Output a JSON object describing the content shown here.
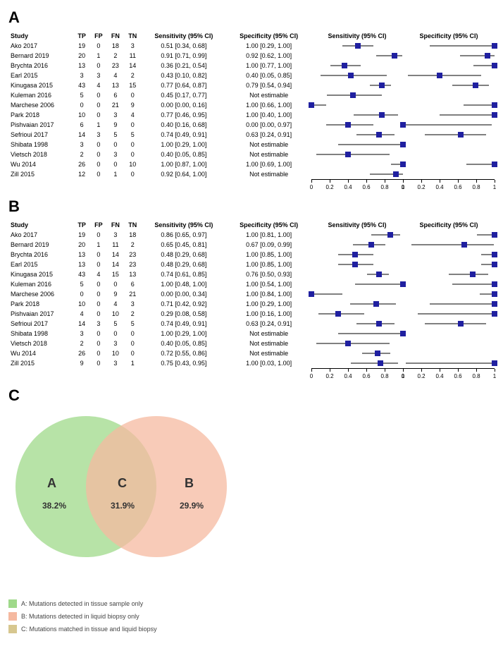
{
  "panelA": {
    "label": "A",
    "columns": [
      "Study",
      "TP",
      "FP",
      "FN",
      "TN",
      "Sensitivity (95% CI)",
      "Specificity (95% CI)",
      "Sensitivity (95% CI)",
      "Specificity (95% CI)"
    ],
    "axis_ticks": [
      0,
      0.2,
      0.4,
      0.6,
      0.8,
      1
    ],
    "marker_color": "#2020a0",
    "rows": [
      {
        "study": "Ako 2017",
        "tp": 19,
        "fp": 0,
        "fn": 18,
        "tn": 3,
        "sens_txt": "0.51 [0.34, 0.68]",
        "spec_txt": "1.00 [0.29, 1.00]",
        "sens": {
          "lo": 0.34,
          "pt": 0.51,
          "hi": 0.68
        },
        "spec": {
          "lo": 0.29,
          "pt": 1.0,
          "hi": 1.0
        }
      },
      {
        "study": "Bernard 2019",
        "tp": 20,
        "fp": 1,
        "fn": 2,
        "tn": 11,
        "sens_txt": "0.91 [0.71, 0.99]",
        "spec_txt": "0.92 [0.62, 1.00]",
        "sens": {
          "lo": 0.71,
          "pt": 0.91,
          "hi": 0.99
        },
        "spec": {
          "lo": 0.62,
          "pt": 0.92,
          "hi": 1.0
        }
      },
      {
        "study": "Brychta 2016",
        "tp": 13,
        "fp": 0,
        "fn": 23,
        "tn": 14,
        "sens_txt": "0.36 [0.21, 0.54]",
        "spec_txt": "1.00 [0.77, 1.00]",
        "sens": {
          "lo": 0.21,
          "pt": 0.36,
          "hi": 0.54
        },
        "spec": {
          "lo": 0.77,
          "pt": 1.0,
          "hi": 1.0
        }
      },
      {
        "study": "Earl 2015",
        "tp": 3,
        "fp": 3,
        "fn": 4,
        "tn": 2,
        "sens_txt": "0.43 [0.10, 0.82]",
        "spec_txt": "0.40 [0.05, 0.85]",
        "sens": {
          "lo": 0.1,
          "pt": 0.43,
          "hi": 0.82
        },
        "spec": {
          "lo": 0.05,
          "pt": 0.4,
          "hi": 0.85
        }
      },
      {
        "study": "Kinugasa 2015",
        "tp": 43,
        "fp": 4,
        "fn": 13,
        "tn": 15,
        "sens_txt": "0.77 [0.64, 0.87]",
        "spec_txt": "0.79 [0.54, 0.94]",
        "sens": {
          "lo": 0.64,
          "pt": 0.77,
          "hi": 0.87
        },
        "spec": {
          "lo": 0.54,
          "pt": 0.79,
          "hi": 0.94
        }
      },
      {
        "study": "Kuleman 2016",
        "tp": 5,
        "fp": 0,
        "fn": 6,
        "tn": 0,
        "sens_txt": "0.45 [0.17, 0.77]",
        "spec_txt": "Not estimable",
        "sens": {
          "lo": 0.17,
          "pt": 0.45,
          "hi": 0.77
        },
        "spec": null
      },
      {
        "study": "Marchese 2006",
        "tp": 0,
        "fp": 0,
        "fn": 21,
        "tn": 9,
        "sens_txt": "0.00 [0.00, 0.16]",
        "spec_txt": "1.00 [0.66, 1.00]",
        "sens": {
          "lo": 0.0,
          "pt": 0.0,
          "hi": 0.16
        },
        "spec": {
          "lo": 0.66,
          "pt": 1.0,
          "hi": 1.0
        }
      },
      {
        "study": "Park 2018",
        "tp": 10,
        "fp": 0,
        "fn": 3,
        "tn": 4,
        "sens_txt": "0.77 [0.46, 0.95]",
        "spec_txt": "1.00 [0.40, 1.00]",
        "sens": {
          "lo": 0.46,
          "pt": 0.77,
          "hi": 0.95
        },
        "spec": {
          "lo": 0.4,
          "pt": 1.0,
          "hi": 1.0
        }
      },
      {
        "study": "Pishvaian 2017",
        "tp": 6,
        "fp": 1,
        "fn": 9,
        "tn": 0,
        "sens_txt": "0.40 [0.16, 0.68]",
        "spec_txt": "0.00 [0.00, 0.97]",
        "sens": {
          "lo": 0.16,
          "pt": 0.4,
          "hi": 0.68
        },
        "spec": {
          "lo": 0.0,
          "pt": 0.0,
          "hi": 0.97
        }
      },
      {
        "study": "Sefrioui 2017",
        "tp": 14,
        "fp": 3,
        "fn": 5,
        "tn": 5,
        "sens_txt": "0.74 [0.49, 0.91]",
        "spec_txt": "0.63 [0.24, 0.91]",
        "sens": {
          "lo": 0.49,
          "pt": 0.74,
          "hi": 0.91
        },
        "spec": {
          "lo": 0.24,
          "pt": 0.63,
          "hi": 0.91
        }
      },
      {
        "study": "Shibata 1998",
        "tp": 3,
        "fp": 0,
        "fn": 0,
        "tn": 0,
        "sens_txt": "1.00 [0.29, 1.00]",
        "spec_txt": "Not estimable",
        "sens": {
          "lo": 0.29,
          "pt": 1.0,
          "hi": 1.0
        },
        "spec": null
      },
      {
        "study": "Vietsch 2018",
        "tp": 2,
        "fp": 0,
        "fn": 3,
        "tn": 0,
        "sens_txt": "0.40 [0.05, 0.85]",
        "spec_txt": "Not estimable",
        "sens": {
          "lo": 0.05,
          "pt": 0.4,
          "hi": 0.85
        },
        "spec": null
      },
      {
        "study": "Wu 2014",
        "tp": 26,
        "fp": 0,
        "fn": 0,
        "tn": 10,
        "sens_txt": "1.00 [0.87, 1.00]",
        "spec_txt": "1.00 [0.69, 1.00]",
        "sens": {
          "lo": 0.87,
          "pt": 1.0,
          "hi": 1.0
        },
        "spec": {
          "lo": 0.69,
          "pt": 1.0,
          "hi": 1.0
        }
      },
      {
        "study": "Zill 2015",
        "tp": 12,
        "fp": 0,
        "fn": 1,
        "tn": 0,
        "sens_txt": "0.92 [0.64, 1.00]",
        "spec_txt": "Not estimable",
        "sens": {
          "lo": 0.64,
          "pt": 0.92,
          "hi": 1.0
        },
        "spec": null
      }
    ]
  },
  "panelB": {
    "label": "B",
    "columns": [
      "Study",
      "TP",
      "FP",
      "FN",
      "TN",
      "Sensitivity (95% CI)",
      "Specificity (95% CI)",
      "Sensitivity (95% CI)",
      "Specificity (95% CI)"
    ],
    "axis_ticks": [
      0,
      0.2,
      0.4,
      0.6,
      0.8,
      1
    ],
    "marker_color": "#2020a0",
    "rows": [
      {
        "study": "Ako 2017",
        "tp": 19,
        "fp": 0,
        "fn": 3,
        "tn": 18,
        "sens_txt": "0.86 [0.65, 0.97]",
        "spec_txt": "1.00 [0.81, 1.00]",
        "sens": {
          "lo": 0.65,
          "pt": 0.86,
          "hi": 0.97
        },
        "spec": {
          "lo": 0.81,
          "pt": 1.0,
          "hi": 1.0
        }
      },
      {
        "study": "Bernard 2019",
        "tp": 20,
        "fp": 1,
        "fn": 11,
        "tn": 2,
        "sens_txt": "0.65 [0.45, 0.81]",
        "spec_txt": "0.67 [0.09, 0.99]",
        "sens": {
          "lo": 0.45,
          "pt": 0.65,
          "hi": 0.81
        },
        "spec": {
          "lo": 0.09,
          "pt": 0.67,
          "hi": 0.99
        }
      },
      {
        "study": "Brychta 2016",
        "tp": 13,
        "fp": 0,
        "fn": 14,
        "tn": 23,
        "sens_txt": "0.48 [0.29, 0.68]",
        "spec_txt": "1.00 [0.85, 1.00]",
        "sens": {
          "lo": 0.29,
          "pt": 0.48,
          "hi": 0.68
        },
        "spec": {
          "lo": 0.85,
          "pt": 1.0,
          "hi": 1.0
        }
      },
      {
        "study": "Earl 2015",
        "tp": 13,
        "fp": 0,
        "fn": 14,
        "tn": 23,
        "sens_txt": "0.48 [0.29, 0.68]",
        "spec_txt": "1.00 [0.85, 1.00]",
        "sens": {
          "lo": 0.29,
          "pt": 0.48,
          "hi": 0.68
        },
        "spec": {
          "lo": 0.85,
          "pt": 1.0,
          "hi": 1.0
        }
      },
      {
        "study": "Kinugasa 2015",
        "tp": 43,
        "fp": 4,
        "fn": 15,
        "tn": 13,
        "sens_txt": "0.74 [0.61, 0.85]",
        "spec_txt": "0.76 [0.50, 0.93]",
        "sens": {
          "lo": 0.61,
          "pt": 0.74,
          "hi": 0.85
        },
        "spec": {
          "lo": 0.5,
          "pt": 0.76,
          "hi": 0.93
        }
      },
      {
        "study": "Kuleman 2016",
        "tp": 5,
        "fp": 0,
        "fn": 0,
        "tn": 6,
        "sens_txt": "1.00 [0.48, 1.00]",
        "spec_txt": "1.00 [0.54, 1.00]",
        "sens": {
          "lo": 0.48,
          "pt": 1.0,
          "hi": 1.0
        },
        "spec": {
          "lo": 0.54,
          "pt": 1.0,
          "hi": 1.0
        }
      },
      {
        "study": "Marchese 2006",
        "tp": 0,
        "fp": 0,
        "fn": 9,
        "tn": 21,
        "sens_txt": "0.00 [0.00, 0.34]",
        "spec_txt": "1.00 [0.84, 1.00]",
        "sens": {
          "lo": 0.0,
          "pt": 0.0,
          "hi": 0.34
        },
        "spec": {
          "lo": 0.84,
          "pt": 1.0,
          "hi": 1.0
        }
      },
      {
        "study": "Park 2018",
        "tp": 10,
        "fp": 0,
        "fn": 4,
        "tn": 3,
        "sens_txt": "0.71 [0.42, 0.92]",
        "spec_txt": "1.00 [0.29, 1.00]",
        "sens": {
          "lo": 0.42,
          "pt": 0.71,
          "hi": 0.92
        },
        "spec": {
          "lo": 0.29,
          "pt": 1.0,
          "hi": 1.0
        }
      },
      {
        "study": "Pishvaian 2017",
        "tp": 4,
        "fp": 0,
        "fn": 10,
        "tn": 2,
        "sens_txt": "0.29 [0.08, 0.58]",
        "spec_txt": "1.00 [0.16, 1.00]",
        "sens": {
          "lo": 0.08,
          "pt": 0.29,
          "hi": 0.58
        },
        "spec": {
          "lo": 0.16,
          "pt": 1.0,
          "hi": 1.0
        }
      },
      {
        "study": "Sefrioui 2017",
        "tp": 14,
        "fp": 3,
        "fn": 5,
        "tn": 5,
        "sens_txt": "0.74 [0.49, 0.91]",
        "spec_txt": "0.63 [0.24, 0.91]",
        "sens": {
          "lo": 0.49,
          "pt": 0.74,
          "hi": 0.91
        },
        "spec": {
          "lo": 0.24,
          "pt": 0.63,
          "hi": 0.91
        }
      },
      {
        "study": "Shibata 1998",
        "tp": 3,
        "fp": 0,
        "fn": 0,
        "tn": 0,
        "sens_txt": "1.00 [0.29, 1.00]",
        "spec_txt": "Not estimable",
        "sens": {
          "lo": 0.29,
          "pt": 1.0,
          "hi": 1.0
        },
        "spec": null
      },
      {
        "study": "Vietsch 2018",
        "tp": 2,
        "fp": 0,
        "fn": 3,
        "tn": 0,
        "sens_txt": "0.40 [0.05, 0.85]",
        "spec_txt": "Not estimable",
        "sens": {
          "lo": 0.05,
          "pt": 0.4,
          "hi": 0.85
        },
        "spec": null
      },
      {
        "study": "Wu 2014",
        "tp": 26,
        "fp": 0,
        "fn": 10,
        "tn": 0,
        "sens_txt": "0.72 [0.55, 0.86]",
        "spec_txt": "Not estimable",
        "sens": {
          "lo": 0.55,
          "pt": 0.72,
          "hi": 0.86
        },
        "spec": null
      },
      {
        "study": "Zill 2015",
        "tp": 9,
        "fp": 0,
        "fn": 3,
        "tn": 1,
        "sens_txt": "0.75 [0.43, 0.95]",
        "spec_txt": "1.00 [0.03, 1.00]",
        "sens": {
          "lo": 0.43,
          "pt": 0.75,
          "hi": 0.95
        },
        "spec": {
          "lo": 0.03,
          "pt": 1.0,
          "hi": 1.0
        }
      }
    ]
  },
  "panelC": {
    "label": "C",
    "left_color": "#9fd98a",
    "right_color": "#f5b9a0",
    "overlap_color": "#d7c78f",
    "labels": {
      "A": "A",
      "B": "B",
      "C": "C"
    },
    "percents": {
      "A": "38.2%",
      "B": "29.9%",
      "C": "31.9%"
    },
    "legend": [
      {
        "swatch": "#9fd98a",
        "text": "A: Mutations detected in tissue sample only"
      },
      {
        "swatch": "#f5b9a0",
        "text": "B: Mutations detected in liquid biopsy only"
      },
      {
        "swatch": "#d7c78f",
        "text": "C: Mutations matched in tissue and liquid biopsy"
      }
    ]
  }
}
